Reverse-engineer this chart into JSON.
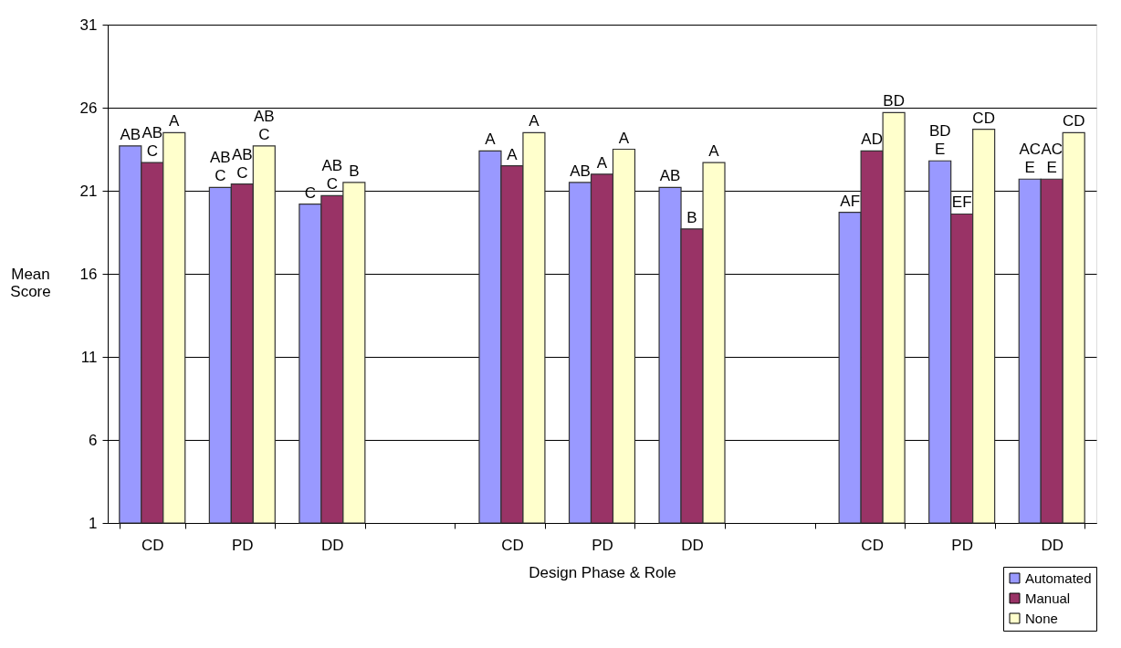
{
  "chart_data": {
    "type": "bar",
    "xlabel": "Design Phase & Role",
    "ylabel": "Mean Score",
    "categories": [
      "CD",
      "PD",
      "DD",
      null,
      "CD",
      "PD",
      "DD",
      null,
      "CD",
      "PD",
      "DD"
    ],
    "series": [
      {
        "name": "Automated",
        "color": "#9999ff",
        "values": [
          23.7,
          21.2,
          20.2,
          null,
          23.4,
          21.5,
          21.2,
          null,
          19.7,
          22.8,
          21.7
        ],
        "value_labels": [
          "AB",
          "AB\nC",
          "C",
          null,
          "A",
          "AB",
          "AB",
          null,
          "AF",
          "BD\nE",
          "AC\nE"
        ]
      },
      {
        "name": "Manual",
        "color": "#993366",
        "values": [
          22.7,
          21.4,
          20.7,
          null,
          22.5,
          22.0,
          18.7,
          null,
          23.4,
          19.6,
          21.7
        ],
        "value_labels": [
          "AB\nC",
          "AB\nC",
          "AB\nC",
          null,
          "A",
          "A",
          "B",
          null,
          "AD",
          "EF",
          "AC\nE"
        ]
      },
      {
        "name": "None",
        "color": "#ffffcc",
        "values": [
          24.5,
          23.7,
          21.5,
          null,
          24.5,
          23.5,
          22.7,
          null,
          25.7,
          24.7,
          24.5
        ],
        "value_labels": [
          "A",
          "AB\nC",
          "B",
          null,
          "A",
          "A",
          "A",
          null,
          "BD",
          "CD",
          "CD"
        ]
      }
    ],
    "ylim": [
      1,
      31
    ],
    "yticks": [
      1,
      6,
      11,
      16,
      21,
      26,
      31
    ],
    "grid": "y",
    "legend": "bottom right"
  }
}
